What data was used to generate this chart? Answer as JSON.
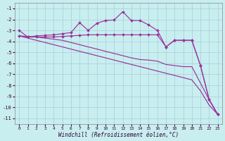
{
  "xlabel": "Windchill (Refroidissement éolien,°C)",
  "bg_color": "#c8eef0",
  "grid_color": "#a8ccd8",
  "line_color": "#993399",
  "x_data": [
    0,
    1,
    2,
    3,
    4,
    5,
    6,
    7,
    8,
    9,
    10,
    11,
    12,
    13,
    14,
    15,
    16,
    17,
    18,
    19,
    20,
    21,
    22,
    23
  ],
  "line1_y": [
    -3.0,
    -3.6,
    -3.5,
    -3.45,
    -3.4,
    -3.3,
    -3.2,
    -2.3,
    -3.0,
    -2.35,
    -2.1,
    -2.05,
    -1.3,
    -2.1,
    -2.1,
    -2.5,
    -3.0,
    -4.5,
    -3.9,
    -3.9,
    -3.9,
    -6.2,
    -9.3,
    -10.65
  ],
  "line2_y": [
    -3.5,
    -3.6,
    -3.6,
    -3.6,
    -3.6,
    -3.55,
    -3.5,
    -3.45,
    -3.4,
    -3.4,
    -3.4,
    -3.4,
    -3.4,
    -3.4,
    -3.4,
    -3.4,
    -3.4,
    -4.5,
    -3.9,
    -3.9,
    -3.9,
    -6.2,
    -9.3,
    -10.65
  ],
  "line3_y": [
    -3.5,
    -3.55,
    -3.6,
    -3.7,
    -3.8,
    -3.9,
    -4.1,
    -4.3,
    -4.5,
    -4.7,
    -4.9,
    -5.1,
    -5.3,
    -5.5,
    -5.65,
    -5.7,
    -5.8,
    -6.1,
    -6.2,
    -6.3,
    -6.3,
    -7.8,
    -9.3,
    -10.65
  ],
  "line4_y": [
    -3.5,
    -3.7,
    -3.9,
    -4.1,
    -4.3,
    -4.5,
    -4.7,
    -4.9,
    -5.1,
    -5.3,
    -5.5,
    -5.7,
    -5.9,
    -6.1,
    -6.3,
    -6.5,
    -6.7,
    -6.9,
    -7.1,
    -7.3,
    -7.5,
    -8.5,
    -9.8,
    -10.65
  ],
  "ylim": [
    -11.5,
    -0.5
  ],
  "xlim": [
    -0.5,
    23.5
  ],
  "yticks": [
    -11,
    -10,
    -9,
    -8,
    -7,
    -6,
    -5,
    -4,
    -3,
    -2,
    -1
  ],
  "xticks": [
    0,
    1,
    2,
    3,
    4,
    5,
    6,
    7,
    8,
    9,
    10,
    11,
    12,
    13,
    14,
    15,
    16,
    17,
    18,
    19,
    20,
    21,
    22,
    23
  ]
}
